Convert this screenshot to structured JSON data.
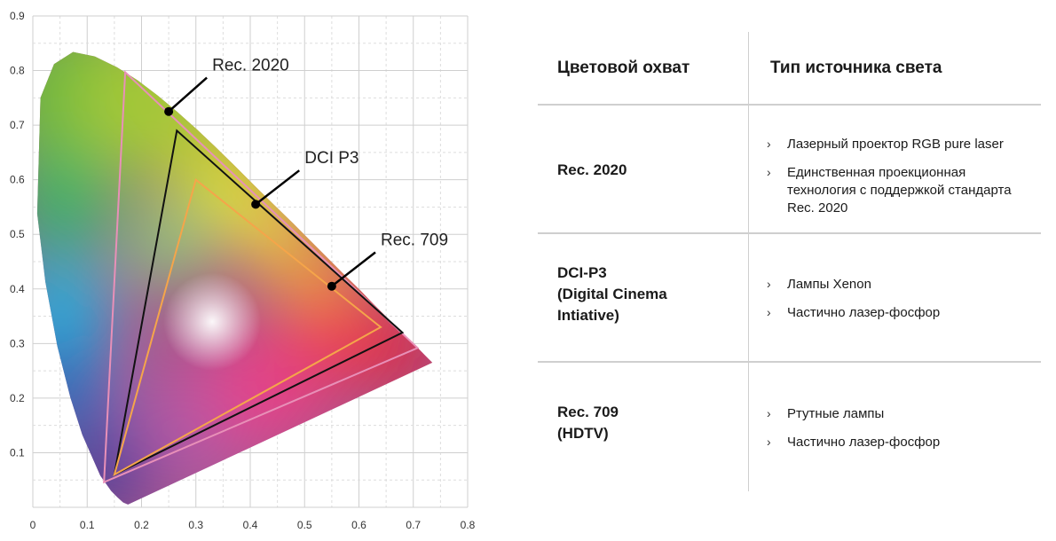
{
  "chart_data": {
    "type": "scatter",
    "title": "",
    "xlabel": "",
    "ylabel": "",
    "xlim": [
      0,
      0.8
    ],
    "ylim": [
      0,
      0.9
    ],
    "xticks": [
      "0",
      "0.1",
      "0.2",
      "0.3",
      "0.4",
      "0.5",
      "0.6",
      "0.7",
      "0.8"
    ],
    "yticks": [
      "0.1",
      "0.2",
      "0.3",
      "0.4",
      "0.5",
      "0.6",
      "0.7",
      "0.8",
      "0.9"
    ],
    "grid": true,
    "spectral_locus": [
      [
        0.175,
        0.005
      ],
      [
        0.166,
        0.009
      ],
      [
        0.156,
        0.018
      ],
      [
        0.144,
        0.03
      ],
      [
        0.124,
        0.058
      ],
      [
        0.091,
        0.133
      ],
      [
        0.069,
        0.201
      ],
      [
        0.045,
        0.295
      ],
      [
        0.023,
        0.413
      ],
      [
        0.008,
        0.538
      ],
      [
        0.014,
        0.75
      ],
      [
        0.039,
        0.812
      ],
      [
        0.074,
        0.834
      ],
      [
        0.114,
        0.826
      ],
      [
        0.155,
        0.806
      ],
      [
        0.193,
        0.782
      ],
      [
        0.23,
        0.754
      ],
      [
        0.266,
        0.724
      ],
      [
        0.302,
        0.692
      ],
      [
        0.337,
        0.659
      ],
      [
        0.373,
        0.624
      ],
      [
        0.408,
        0.589
      ],
      [
        0.444,
        0.554
      ],
      [
        0.479,
        0.52
      ],
      [
        0.512,
        0.487
      ],
      [
        0.544,
        0.455
      ],
      [
        0.575,
        0.424
      ],
      [
        0.602,
        0.398
      ],
      [
        0.627,
        0.372
      ],
      [
        0.648,
        0.351
      ],
      [
        0.665,
        0.334
      ],
      [
        0.68,
        0.32
      ],
      [
        0.692,
        0.308
      ],
      [
        0.701,
        0.299
      ],
      [
        0.713,
        0.287
      ],
      [
        0.723,
        0.277
      ],
      [
        0.735,
        0.265
      ]
    ],
    "series": [
      {
        "name": "Rec. 2020",
        "color": "#e890b8",
        "points": [
          [
            0.708,
            0.292
          ],
          [
            0.17,
            0.797
          ],
          [
            0.131,
            0.046
          ]
        ]
      },
      {
        "name": "DCI P3",
        "color": "#111111",
        "points": [
          [
            0.68,
            0.32
          ],
          [
            0.265,
            0.69
          ],
          [
            0.15,
            0.06
          ]
        ]
      },
      {
        "name": "Rec. 709",
        "color": "#f5a54a",
        "points": [
          [
            0.64,
            0.33
          ],
          [
            0.3,
            0.6
          ],
          [
            0.15,
            0.06
          ]
        ]
      }
    ],
    "annotations": [
      {
        "label": "Rec. 2020",
        "point": [
          0.25,
          0.725
        ],
        "text_at": [
          0.33,
          0.8
        ]
      },
      {
        "label": "DCI P3",
        "point": [
          0.41,
          0.555
        ],
        "text_at": [
          0.5,
          0.63
        ]
      },
      {
        "label": "Rec. 709",
        "point": [
          0.55,
          0.405
        ],
        "text_at": [
          0.64,
          0.48
        ]
      }
    ]
  },
  "table": {
    "header_gamut": "Цветовой охват",
    "header_source": "Тип источника света",
    "rows": [
      {
        "gamut_lines": [
          "Rec. 2020"
        ],
        "sources": [
          "Лазерный проектор RGB pure laser",
          "Единственная проекционная технология с поддержкой стандарта Rec. 2020"
        ]
      },
      {
        "gamut_lines": [
          "DCI-P3",
          "(Digital Cinema",
          "Intiative)"
        ],
        "sources": [
          "Лампы Xenon",
          "Частично лазер-фосфор"
        ]
      },
      {
        "gamut_lines": [
          "Rec. 709",
          "(HDTV)"
        ],
        "sources": [
          "Ртутные лампы",
          "Частично лазер-фосфор"
        ]
      }
    ],
    "bullet_glyph": "›"
  }
}
